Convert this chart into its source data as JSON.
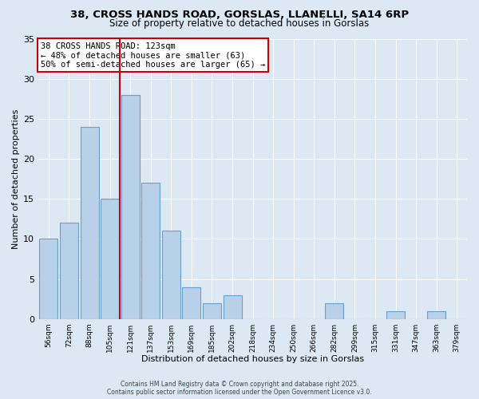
{
  "title": "38, CROSS HANDS ROAD, GORSLAS, LLANELLI, SA14 6RP",
  "subtitle": "Size of property relative to detached houses in Gorslas",
  "xlabel": "Distribution of detached houses by size in Gorslas",
  "ylabel": "Number of detached properties",
  "bin_labels": [
    "56sqm",
    "72sqm",
    "88sqm",
    "105sqm",
    "121sqm",
    "137sqm",
    "153sqm",
    "169sqm",
    "185sqm",
    "202sqm",
    "218sqm",
    "234sqm",
    "250sqm",
    "266sqm",
    "282sqm",
    "299sqm",
    "315sqm",
    "331sqm",
    "347sqm",
    "363sqm",
    "379sqm"
  ],
  "bar_values": [
    10,
    12,
    24,
    15,
    28,
    17,
    11,
    4,
    2,
    3,
    0,
    0,
    0,
    0,
    2,
    0,
    0,
    1,
    0,
    1,
    0
  ],
  "bar_color": "#b8d0e8",
  "bar_edge_color": "#6aa0cc",
  "red_line_index": 4,
  "annotation_title": "38 CROSS HANDS ROAD: 123sqm",
  "annotation_line1": "← 48% of detached houses are smaller (63)",
  "annotation_line2": "50% of semi-detached houses are larger (65) →",
  "red_line_color": "#cc0000",
  "annotation_box_facecolor": "#ffffff",
  "annotation_box_edgecolor": "#cc0000",
  "ylim": [
    0,
    35
  ],
  "yticks": [
    0,
    5,
    10,
    15,
    20,
    25,
    30,
    35
  ],
  "footer1": "Contains HM Land Registry data © Crown copyright and database right 2025.",
  "footer2": "Contains public sector information licensed under the Open Government Licence v3.0.",
  "background_color": "#dde8f5"
}
